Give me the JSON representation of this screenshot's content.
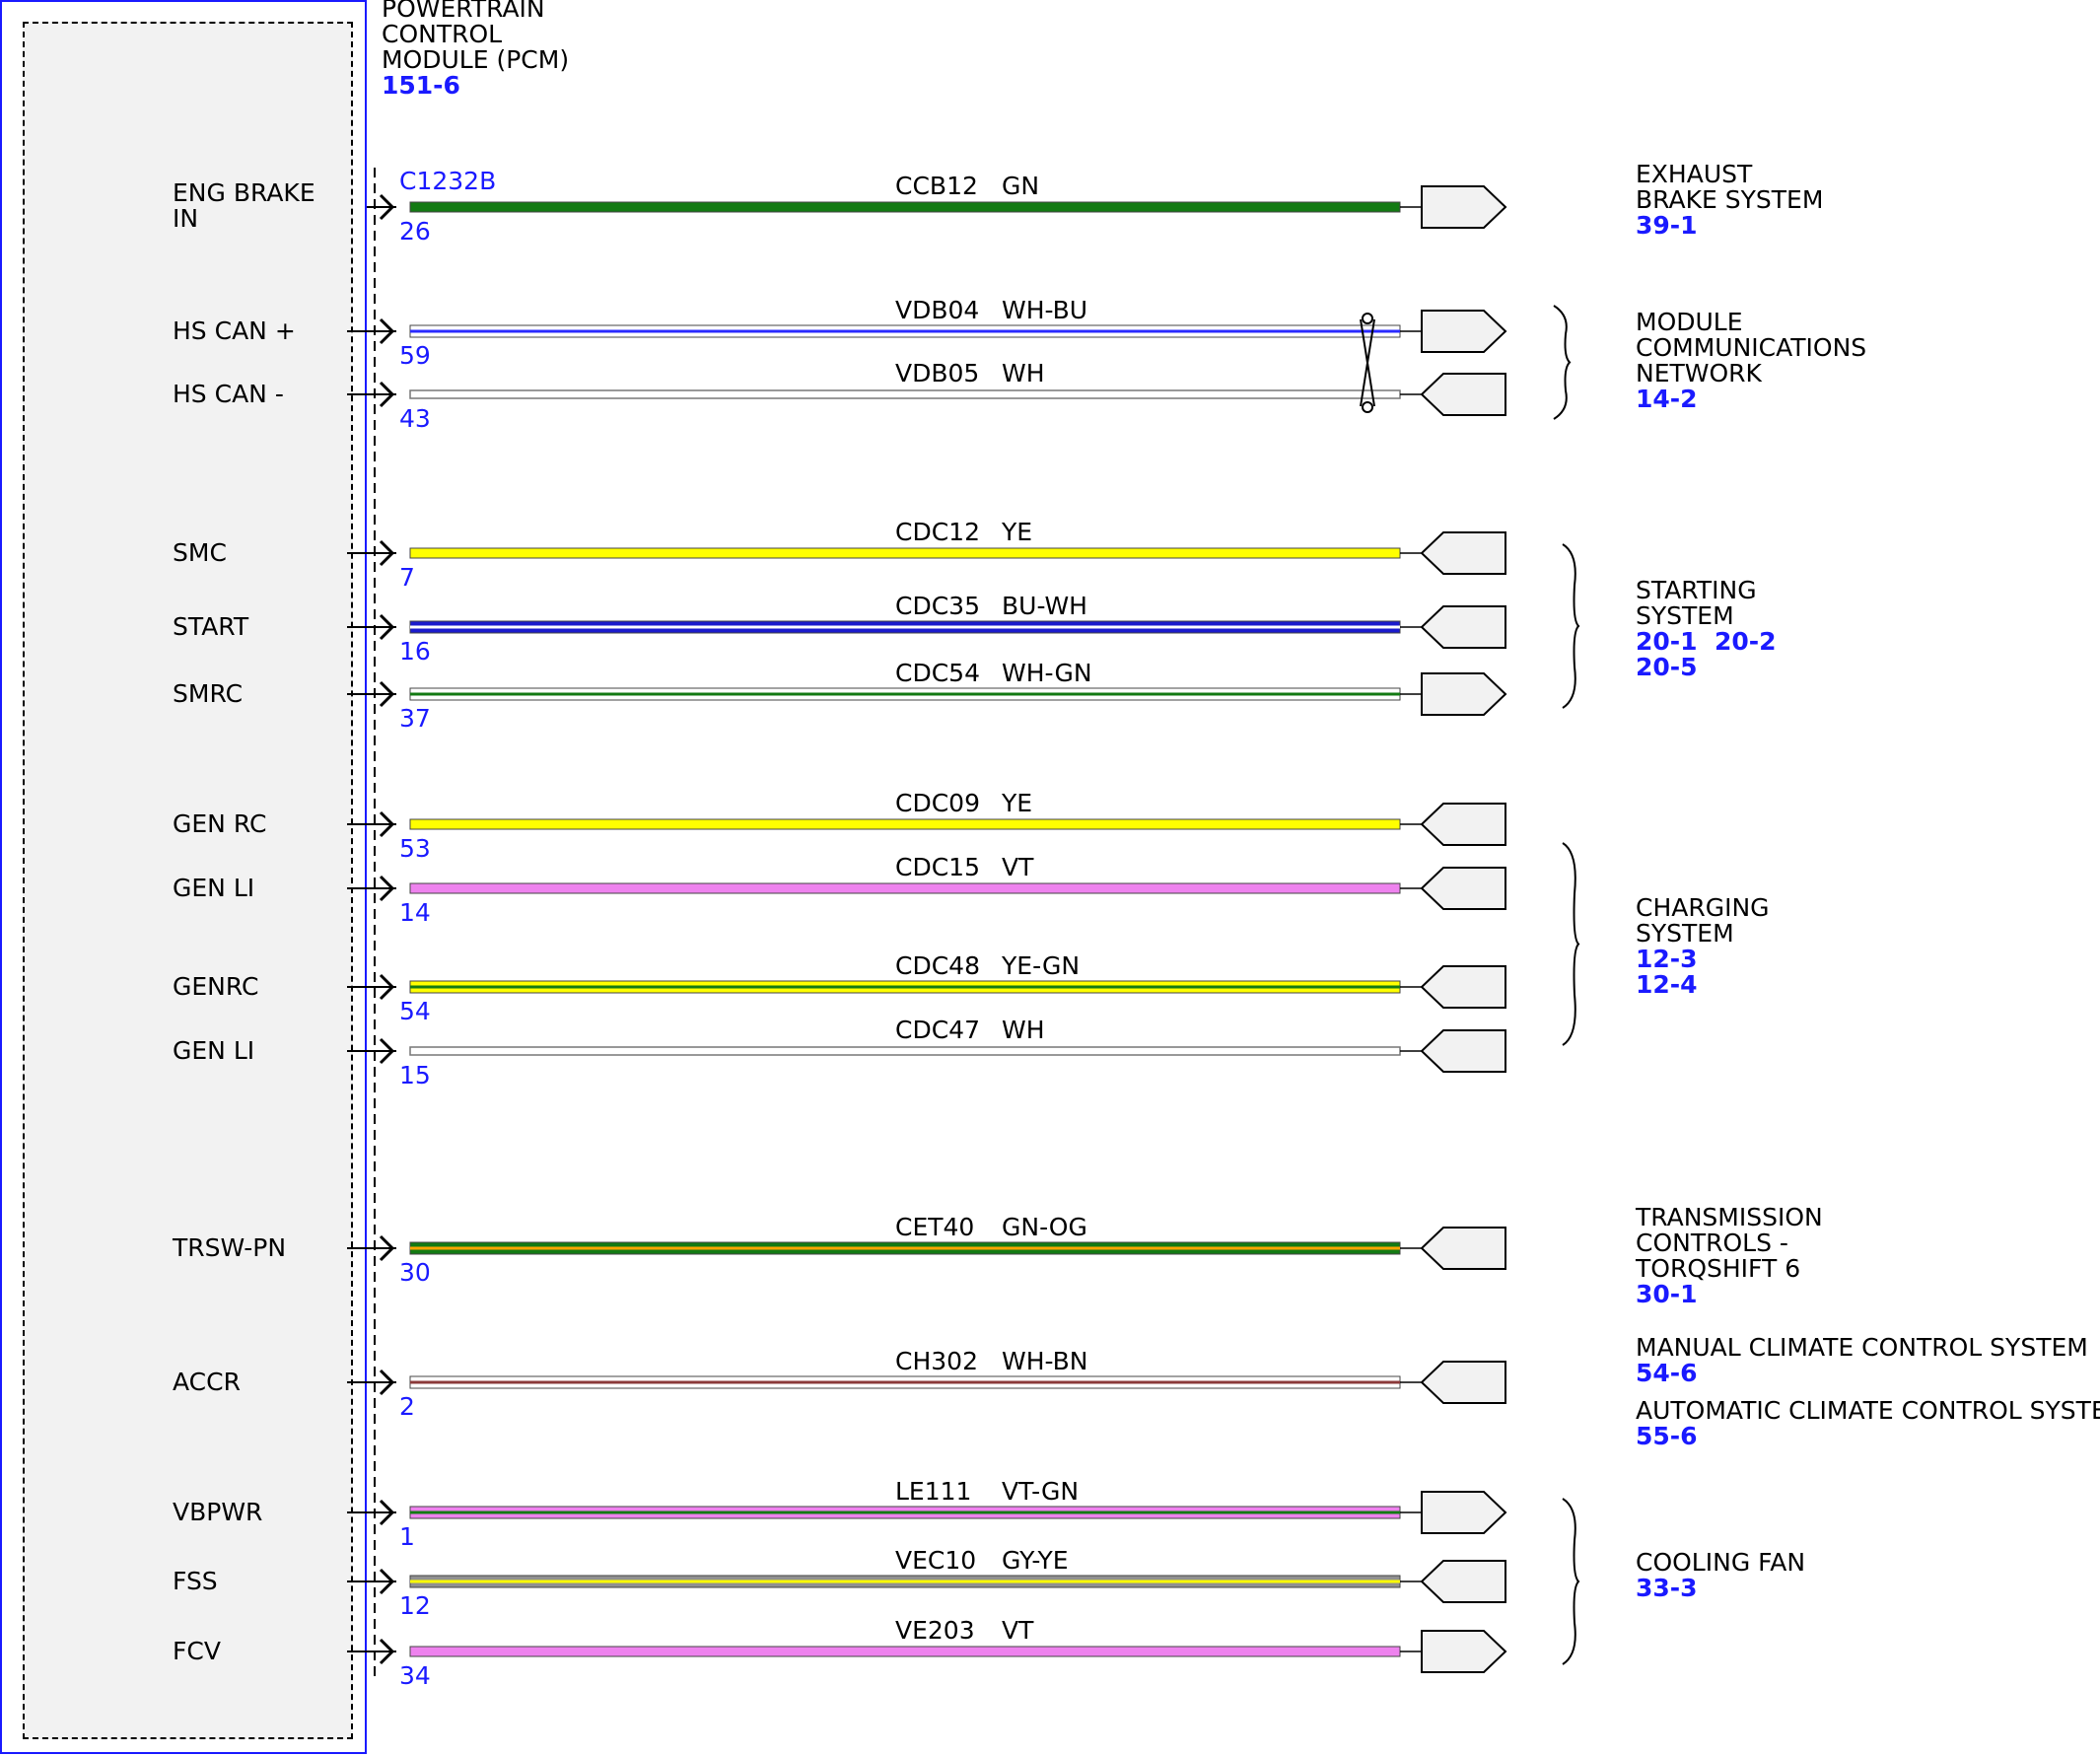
{
  "module": {
    "name_lines": [
      "POWERTRAIN",
      "CONTROL",
      "MODULE (PCM)"
    ],
    "ref": "151-6",
    "connector": "C1232B"
  },
  "circuits": [
    {
      "label": [
        "ENG BRAKE",
        "IN"
      ],
      "pin": "26",
      "circuit": "CCB12",
      "color_code": "GN",
      "colors": [
        "#137a13"
      ],
      "twisted": false,
      "arrow": "right"
    },
    {
      "label": [
        "HS CAN +"
      ],
      "pin": "59",
      "circuit": "VDB04",
      "color_code": "WH-BU",
      "colors": [
        "#ffffff",
        "#2a2aff"
      ],
      "twisted": true,
      "arrow": "right"
    },
    {
      "label": [
        "HS CAN -"
      ],
      "pin": "43",
      "circuit": "VDB05",
      "color_code": "WH",
      "colors": [
        "#ffffff"
      ],
      "twisted": true,
      "arrow": "left"
    },
    {
      "label": [
        "SMC"
      ],
      "pin": "7",
      "circuit": "CDC12",
      "color_code": "YE",
      "colors": [
        "#ffff00"
      ],
      "twisted": false,
      "arrow": "left"
    },
    {
      "label": [
        "START"
      ],
      "pin": "16",
      "circuit": "CDC35",
      "color_code": "BU-WH",
      "colors": [
        "#1a1acc",
        "#ffffff"
      ],
      "twisted": false,
      "arrow": "left"
    },
    {
      "label": [
        "SMRC"
      ],
      "pin": "37",
      "circuit": "CDC54",
      "color_code": "WH-GN",
      "colors": [
        "#ffffff",
        "#137a13"
      ],
      "twisted": false,
      "arrow": "right"
    },
    {
      "label": [
        "GEN RC"
      ],
      "pin": "53",
      "circuit": "CDC09",
      "color_code": "YE",
      "colors": [
        "#ffff00"
      ],
      "twisted": false,
      "arrow": "left"
    },
    {
      "label": [
        "GEN LI"
      ],
      "pin": "14",
      "circuit": "CDC15",
      "color_code": "VT",
      "colors": [
        "#ee82ee"
      ],
      "twisted": false,
      "arrow": "left"
    },
    {
      "label": [
        "GENRC"
      ],
      "pin": "54",
      "circuit": "CDC48",
      "color_code": "YE-GN",
      "colors": [
        "#ffff00",
        "#137a13"
      ],
      "twisted": false,
      "arrow": "left"
    },
    {
      "label": [
        "GEN LI"
      ],
      "pin": "15",
      "circuit": "CDC47",
      "color_code": "WH",
      "colors": [
        "#ffffff"
      ],
      "twisted": false,
      "arrow": "left"
    },
    {
      "label": [
        "TRSW-PN"
      ],
      "pin": "30",
      "circuit": "CET40",
      "color_code": "GN-OG",
      "colors": [
        "#137a13",
        "#ffa500"
      ],
      "twisted": false,
      "arrow": "left"
    },
    {
      "label": [
        "ACCR"
      ],
      "pin": "2",
      "circuit": "CH302",
      "color_code": "WH-BN",
      "colors": [
        "#ffffff",
        "#8b3a3a"
      ],
      "twisted": false,
      "arrow": "left"
    },
    {
      "label": [
        "VBPWR"
      ],
      "pin": "1",
      "circuit": "LE111",
      "color_code": "VT-GN",
      "colors": [
        "#ee82ee",
        "#137a13"
      ],
      "twisted": false,
      "arrow": "right"
    },
    {
      "label": [
        "FSS"
      ],
      "pin": "12",
      "circuit": "VEC10",
      "color_code": "GY-YE",
      "colors": [
        "#909090",
        "#ffff00"
      ],
      "twisted": false,
      "arrow": "left"
    },
    {
      "label": [
        "FCV"
      ],
      "pin": "34",
      "circuit": "VE203",
      "color_code": "VT",
      "colors": [
        "#ee82ee"
      ],
      "twisted": false,
      "arrow": "right"
    }
  ],
  "destinations": [
    {
      "name_lines": [
        "EXHAUST",
        "BRAKE SYSTEM"
      ],
      "refs": [
        "39-1"
      ],
      "brace": false
    },
    {
      "name_lines": [
        "MODULE",
        "COMMUNICATIONS",
        "NETWORK"
      ],
      "refs": [
        "14-2"
      ],
      "brace": true
    },
    {
      "name_lines": [
        "STARTING",
        "SYSTEM"
      ],
      "refs": [
        "20-1  20-2",
        "20-5"
      ],
      "brace": true
    },
    {
      "name_lines": [
        "CHARGING",
        "SYSTEM"
      ],
      "refs": [
        "12-3",
        "12-4"
      ],
      "brace": true
    },
    {
      "name_lines": [
        "TRANSMISSION",
        "CONTROLS -",
        "TORQSHIFT 6"
      ],
      "refs": [
        "30-1"
      ],
      "brace": false
    },
    {
      "name_lines": [
        "MANUAL CLIMATE CONTROL SYSTEM"
      ],
      "refs": [
        "54-6"
      ],
      "brace": false
    },
    {
      "name_lines": [
        "AUTOMATIC CLIMATE CONTROL SYSTEM"
      ],
      "refs": [
        "55-6"
      ],
      "brace": false
    },
    {
      "name_lines": [
        "COOLING FAN"
      ],
      "refs": [
        "33-3"
      ],
      "brace": true
    }
  ]
}
